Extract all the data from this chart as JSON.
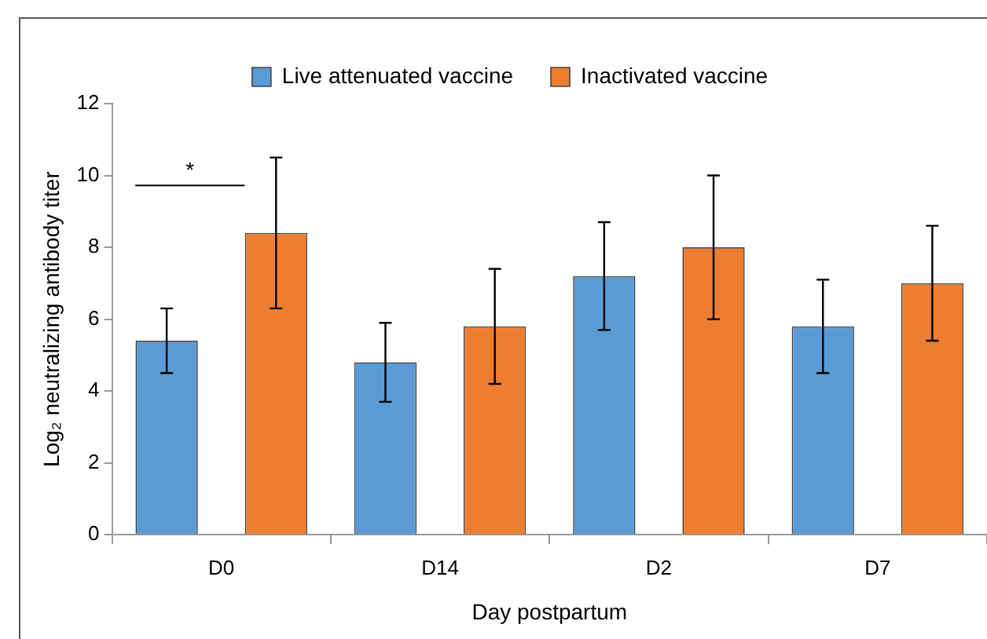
{
  "chart_data": {
    "type": "bar",
    "xlabel": "Day postpartum",
    "ylabel": "Log₂ neutralizing antibody titer",
    "categories": [
      "D0",
      "D14",
      "D2",
      "D7"
    ],
    "series": [
      {
        "name": "Live attenuated vaccine",
        "color": "#5b9bd5",
        "values": [
          5.4,
          4.8,
          7.2,
          5.8
        ],
        "errors": [
          [
            4.5,
            6.3
          ],
          [
            3.7,
            5.9
          ],
          [
            5.7,
            8.7
          ],
          [
            4.5,
            7.1
          ]
        ]
      },
      {
        "name": "Inactivated vaccine",
        "color": "#ed7d31",
        "values": [
          8.4,
          5.8,
          8.0,
          7.0
        ],
        "errors": [
          [
            6.3,
            10.5
          ],
          [
            4.2,
            7.4
          ],
          [
            6.0,
            10.0
          ],
          [
            5.4,
            8.6
          ]
        ]
      }
    ],
    "ylim": [
      0,
      12
    ],
    "yticks": [
      0,
      2,
      4,
      6,
      8,
      10,
      12
    ],
    "grid": false,
    "legend": "top",
    "annotations": [
      "*"
    ]
  }
}
